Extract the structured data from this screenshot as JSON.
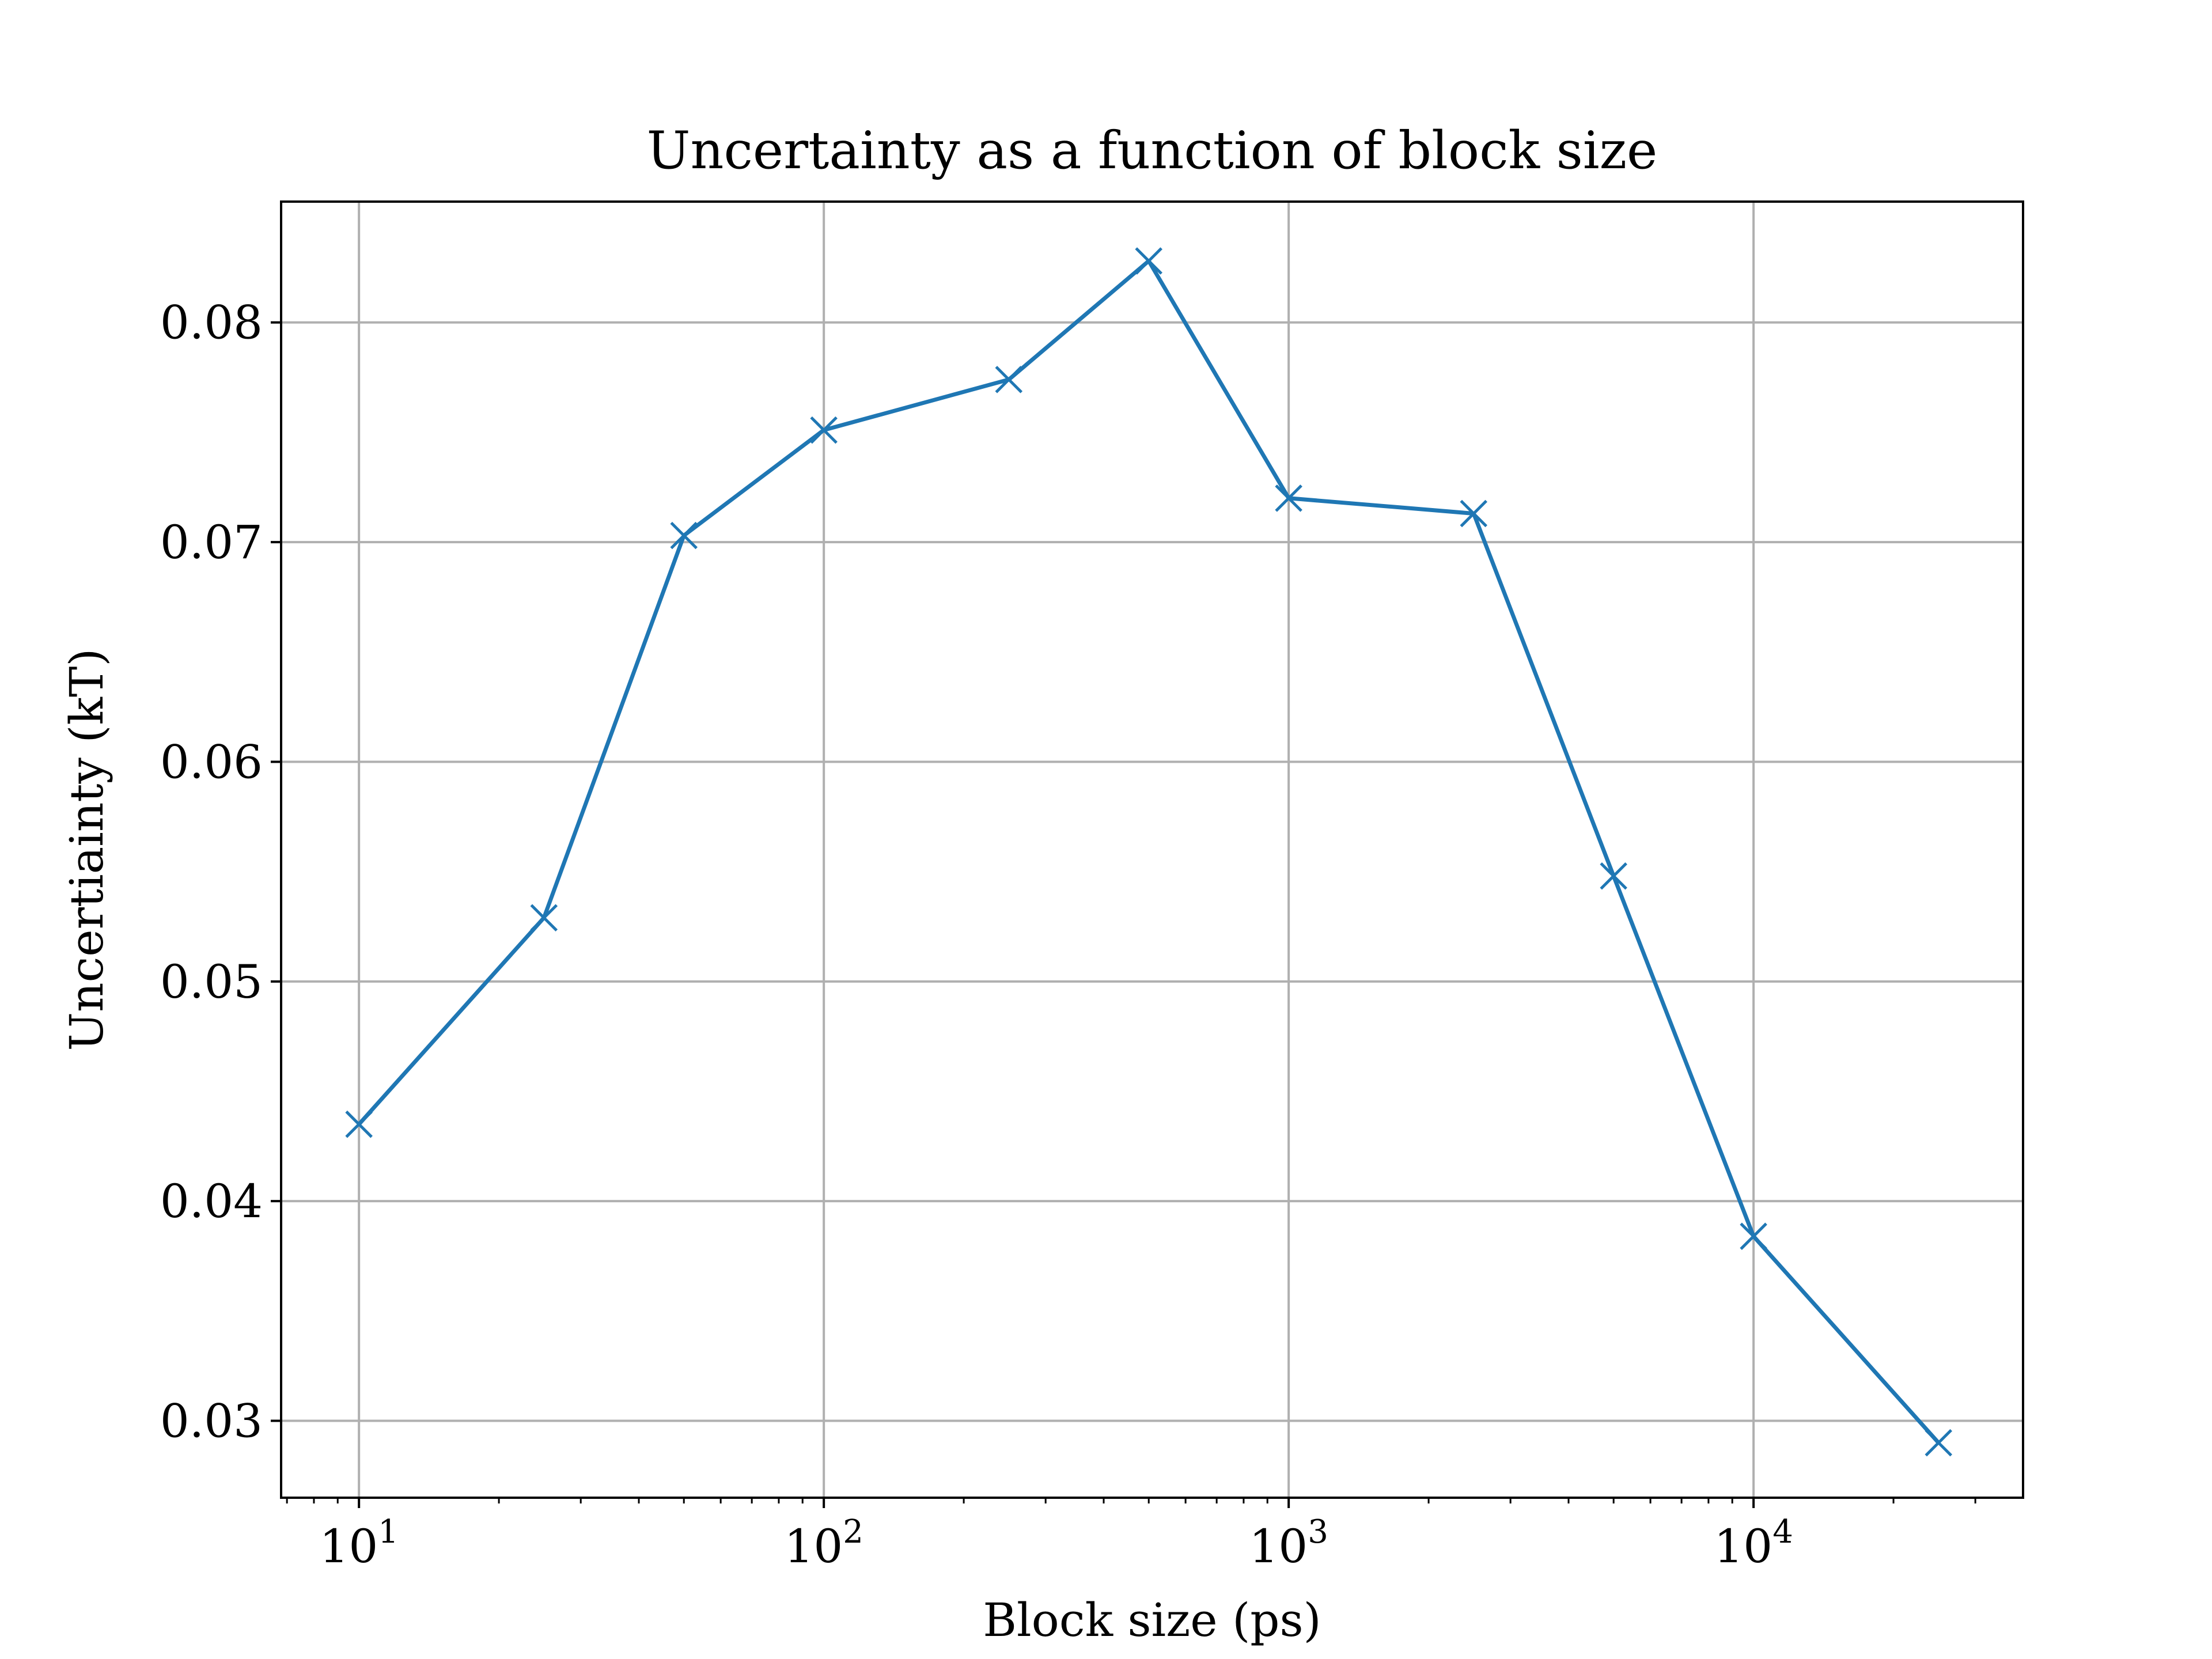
{
  "chart_data": {
    "type": "line",
    "title": "Uncertainty as a function of block size",
    "xlabel": "Block size (ps)",
    "ylabel": "Uncertiainty (kT)",
    "xscale": "log",
    "xlim": [
      6.8,
      38000
    ],
    "ylim": [
      0.0265,
      0.0855
    ],
    "x_ticks": [
      {
        "base": "10",
        "exp": "1",
        "value": 10
      },
      {
        "base": "10",
        "exp": "2",
        "value": 100
      },
      {
        "base": "10",
        "exp": "3",
        "value": 1000
      },
      {
        "base": "10",
        "exp": "4",
        "value": 10000
      }
    ],
    "y_ticks": [
      "0.03",
      "0.04",
      "0.05",
      "0.06",
      "0.07",
      "0.08"
    ],
    "grid": true,
    "marker": "x",
    "series": [
      {
        "color": "#1f77b4",
        "x": [
          10,
          25,
          50,
          100,
          250,
          500,
          1000,
          2500,
          5000,
          10000,
          25000
        ],
        "y": [
          0.0435,
          0.0529,
          0.0703,
          0.0751,
          0.0774,
          0.0828,
          0.072,
          0.0713,
          0.0548,
          0.0384,
          0.029
        ]
      }
    ]
  },
  "colors": {
    "line": "#1f77b4",
    "grid": "#b0b0b0",
    "axes": "#000000"
  }
}
